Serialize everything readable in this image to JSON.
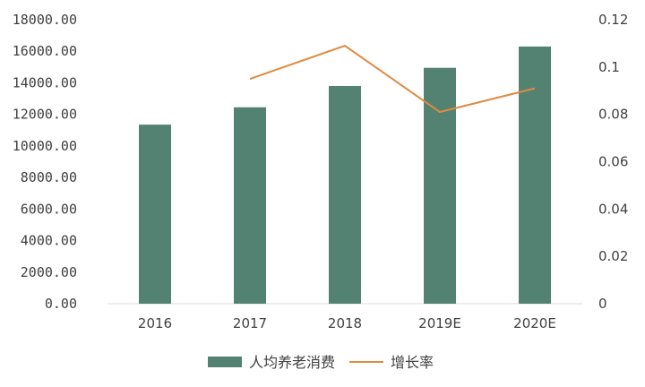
{
  "chart_data": {
    "type": "bar",
    "categories": [
      "2016",
      "2017",
      "2018",
      "2019E",
      "2020E"
    ],
    "series": [
      {
        "name": "人均养老消费",
        "type": "bar",
        "axis": "left",
        "color": "#538273",
        "values": [
          11350,
          12450,
          13800,
          14950,
          16300
        ]
      },
      {
        "name": "增长率",
        "type": "line",
        "axis": "right",
        "color": "#E08A3E",
        "values": [
          null,
          0.095,
          0.109,
          0.081,
          0.091
        ]
      }
    ],
    "y_left": {
      "min": 0,
      "max": 18000,
      "ticks": [
        "0.00",
        "2000.00",
        "4000.00",
        "6000.00",
        "8000.00",
        "10000.00",
        "12000.00",
        "14000.00",
        "16000.00",
        "18000.00"
      ]
    },
    "y_right": {
      "min": 0,
      "max": 0.12,
      "ticks": [
        "0",
        "0.02",
        "0.04",
        "0.06",
        "0.08",
        "0.1",
        "0.12"
      ]
    },
    "grid": false,
    "legend_position": "bottom"
  }
}
